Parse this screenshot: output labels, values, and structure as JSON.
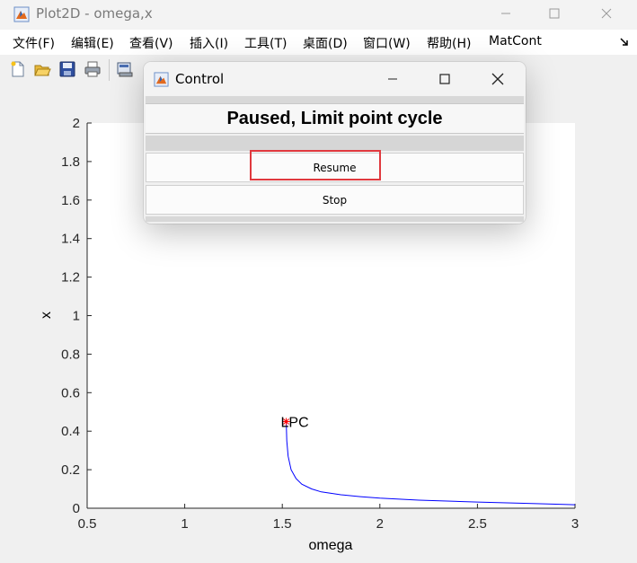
{
  "window": {
    "title": "Plot2D - omega,x",
    "icon": "matlab-icon",
    "controls": [
      "minimize-icon",
      "maximize-icon",
      "close-icon"
    ]
  },
  "menu": {
    "items": [
      "文件(F)",
      "编辑(E)",
      "查看(V)",
      "插入(I)",
      "工具(T)",
      "桌面(D)",
      "窗口(W)",
      "帮助(H)",
      "MatCont"
    ],
    "overflow_icon": "dock-arrow-icon"
  },
  "toolbar": {
    "icons": [
      "new-figure-icon",
      "open-file-icon",
      "save-icon",
      "print-icon",
      "print-preview-icon"
    ]
  },
  "dialog": {
    "title": "Control",
    "status": "Paused, Limit point cycle",
    "resume_label": "Resume",
    "stop_label": "Stop"
  },
  "chart_data": {
    "type": "line",
    "xlabel": "omega",
    "ylabel": "x",
    "xlim": [
      0.5,
      3
    ],
    "ylim": [
      0,
      2
    ],
    "x_ticks": [
      "0.5",
      "1",
      "1.5",
      "2",
      "2.5",
      "3"
    ],
    "y_ticks": [
      "0",
      "0.2",
      "0.4",
      "0.6",
      "0.8",
      "1",
      "1.2",
      "1.4",
      "1.6",
      "1.8",
      "2"
    ],
    "line_color": "#0000ff",
    "marker_color": "#ff0000",
    "series": [
      {
        "x": [
          1.52,
          1.523,
          1.53,
          1.545,
          1.57,
          1.6,
          1.65,
          1.7,
          1.8,
          1.9,
          2.0,
          2.2,
          2.5,
          2.8,
          3.0
        ],
        "y": [
          0.46,
          0.35,
          0.27,
          0.2,
          0.155,
          0.125,
          0.1,
          0.085,
          0.07,
          0.06,
          0.052,
          0.042,
          0.032,
          0.024,
          0.018
        ]
      }
    ],
    "annotations": [
      {
        "text": "LPC",
        "x": 1.52,
        "y": 0.45
      }
    ]
  }
}
